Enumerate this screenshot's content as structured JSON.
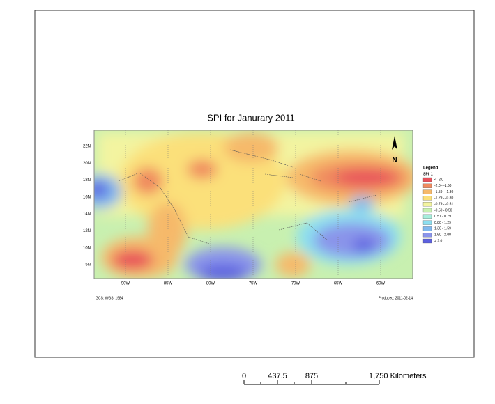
{
  "title": "SPI for Janurary 2011",
  "legend": {
    "heading": "Legend",
    "field": "SPI_1",
    "entries": [
      {
        "label": "< -2.0",
        "color": "#e8505a"
      },
      {
        "label": "-2.0 - -1.60",
        "color": "#f08a5e"
      },
      {
        "label": "-1.59 - -1.30",
        "color": "#f6b96a"
      },
      {
        "label": "-1.29 - -0.80",
        "color": "#fbe07a"
      },
      {
        "label": "-0.79 - -0.51",
        "color": "#f3f4a0"
      },
      {
        "label": "-0.50 - 0.50",
        "color": "#c8f0b0"
      },
      {
        "label": "0.51 - 0.79",
        "color": "#a6eedc"
      },
      {
        "label": "0.80 - 1.29",
        "color": "#8cdff0"
      },
      {
        "label": "1.30 - 1.59",
        "color": "#80b8ee"
      },
      {
        "label": "1.60 - 2.00",
        "color": "#8a94ea"
      },
      {
        "label": "> 2.0",
        "color": "#5c60e0"
      }
    ]
  },
  "lat_labels": [
    "22N",
    "20N",
    "18N",
    "16N",
    "14N",
    "12N",
    "10N",
    "5N"
  ],
  "lon_labels": [
    "90W",
    "85W",
    "80W",
    "75W",
    "70W",
    "65W",
    "60W"
  ],
  "footer_left": "GCS: WGS_1984",
  "footer_right": "Produced: 2011-02-14",
  "scale_bar": {
    "labels": [
      "0",
      "437.5",
      "875",
      "1,750 Kilometers"
    ]
  }
}
